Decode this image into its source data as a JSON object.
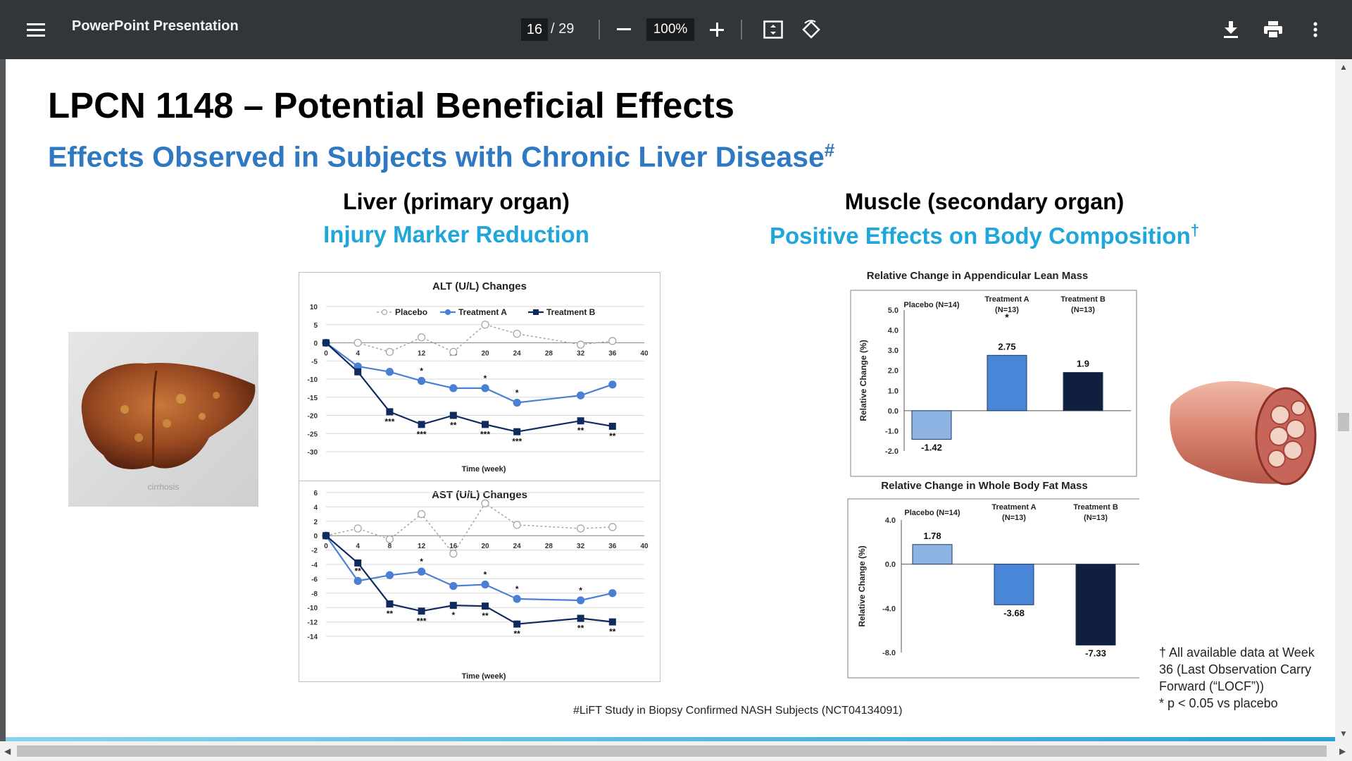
{
  "toolbar": {
    "title": "PowerPoint Presentation",
    "current_page": "16",
    "total_pages": "/ 29",
    "zoom": "100%",
    "icons": [
      "menu-icon",
      "zoom-out-icon",
      "zoom-in-icon",
      "fit-page-icon",
      "rotate-icon",
      "download-icon",
      "print-icon",
      "more-icon"
    ]
  },
  "slide": {
    "title": "LPCN 1148 – Potential Beneficial Effects",
    "subtitle": "Effects Observed in Subjects with Chronic Liver Disease",
    "subtitle_mark": "#",
    "liver_head": "Liver  (primary organ)",
    "liver_sub": "Injury Marker Reduction",
    "muscle_head": "Muscle  (secondary organ)",
    "muscle_sub": "Positive Effects on Body Composition",
    "muscle_sub_mark": "†",
    "liver_img_caption": "cirrhosis",
    "footnote": "#LiFT Study in Biopsy Confirmed NASH Subjects (NCT04134091)",
    "notes": [
      "† All available data at Week 36 (Last Observation Carry Forward (“LOCF”))",
      "* p < 0.05 vs placebo"
    ]
  },
  "colors": {
    "placebo": "#a6a6a6",
    "treatA": "#4a7fd4",
    "treatB": "#0f2a5c",
    "barPlacebo": "#8db3e2",
    "barA": "#4a86d8",
    "barB": "#0f1f3d"
  },
  "chart_data": [
    {
      "type": "line",
      "title": "ALT (U/L) Changes",
      "xlabel": "Time (week)",
      "x_ticks": [
        0,
        4,
        8,
        12,
        16,
        20,
        24,
        28,
        32,
        36,
        40
      ],
      "y_ticks": [
        10,
        5,
        0,
        -5,
        -10,
        -15,
        -20,
        -25,
        -30
      ],
      "ylim": [
        -30,
        10
      ],
      "xlim": [
        0,
        40
      ],
      "series": [
        {
          "name": "Placebo",
          "x": [
            0,
            4,
            8,
            12,
            16,
            20,
            24,
            32,
            36
          ],
          "y": [
            0,
            0,
            -2.5,
            1.5,
            -2.5,
            5,
            2.5,
            -0.5,
            0.5
          ]
        },
        {
          "name": "Treatment A",
          "x": [
            0,
            4,
            8,
            12,
            16,
            20,
            24,
            32,
            36
          ],
          "y": [
            0,
            -6.5,
            -8,
            -10.5,
            -12.5,
            -12.5,
            -16.5,
            -14.5,
            -11.5
          ],
          "sig": [
            "",
            "",
            "",
            "*",
            "",
            "*",
            "*",
            "",
            ""
          ]
        },
        {
          "name": "Treatment B",
          "x": [
            0,
            4,
            8,
            12,
            16,
            20,
            24,
            32,
            36
          ],
          "y": [
            0,
            -8,
            -19,
            -22.5,
            -20,
            -22.5,
            -24.5,
            -21.5,
            -23
          ],
          "sig": [
            "",
            "",
            "***",
            "***",
            "**",
            "***",
            "***",
            "**",
            "**"
          ]
        }
      ]
    },
    {
      "type": "line",
      "title": "AST (U/L) Changes",
      "xlabel": "Time (week)",
      "x_ticks": [
        0,
        4,
        8,
        12,
        16,
        20,
        24,
        28,
        32,
        36,
        40
      ],
      "y_ticks": [
        6,
        4,
        2,
        0,
        -2,
        -4,
        -6,
        -8,
        -10,
        -12,
        -14
      ],
      "ylim": [
        -14,
        6
      ],
      "xlim": [
        0,
        40
      ],
      "series": [
        {
          "name": "Placebo",
          "x": [
            0,
            4,
            8,
            12,
            16,
            20,
            24,
            32,
            36
          ],
          "y": [
            0,
            1,
            -0.5,
            3,
            -2.5,
            4.5,
            1.5,
            1,
            1.2
          ]
        },
        {
          "name": "Treatment A",
          "x": [
            0,
            4,
            8,
            12,
            16,
            20,
            24,
            32,
            36
          ],
          "y": [
            0,
            -6.3,
            -5.5,
            -5,
            -7,
            -6.8,
            -8.8,
            -9,
            -8
          ],
          "sig": [
            "",
            "**",
            "",
            "*",
            "",
            "*",
            "*",
            "*",
            ""
          ]
        },
        {
          "name": "Treatment B",
          "x": [
            0,
            4,
            8,
            12,
            16,
            20,
            24,
            32,
            36
          ],
          "y": [
            0,
            -3.8,
            -9.5,
            -10.5,
            -9.7,
            -9.8,
            -12.3,
            -11.5,
            -12
          ],
          "sig": [
            "",
            "",
            "**",
            "***",
            "*",
            "**",
            "**",
            "**",
            "**"
          ]
        }
      ]
    },
    {
      "type": "bar",
      "title": "Relative Change in Appendicular Lean Mass",
      "ylabel": "Relative Change (%)",
      "categories": [
        "Placebo (N=14)",
        "Treatment A (N=13)",
        "Treatment B (N=13)"
      ],
      "values": [
        -1.42,
        2.75,
        1.9
      ],
      "labels": [
        "-1.42",
        "2.75",
        "1.9"
      ],
      "sig": [
        "",
        "*",
        ""
      ],
      "y_ticks": [
        "5.0",
        "4.0",
        "3.0",
        "2.0",
        "1.0",
        "0.0",
        "-1.0",
        "-2.0"
      ],
      "ylim": [
        -2,
        5
      ]
    },
    {
      "type": "bar",
      "title": "Relative Change in Whole Body Fat Mass",
      "ylabel": "Relative Change (%)",
      "categories": [
        "Placebo (N=14)",
        "Treatment A (N=13)",
        "Treatment B (N=13)"
      ],
      "values": [
        1.78,
        -3.68,
        -7.33
      ],
      "labels": [
        "1.78",
        "-3.68",
        "-7.33"
      ],
      "y_ticks": [
        "4.0",
        "0.0",
        "-4.0",
        "-8.0"
      ],
      "ylim": [
        -8,
        4
      ]
    }
  ]
}
